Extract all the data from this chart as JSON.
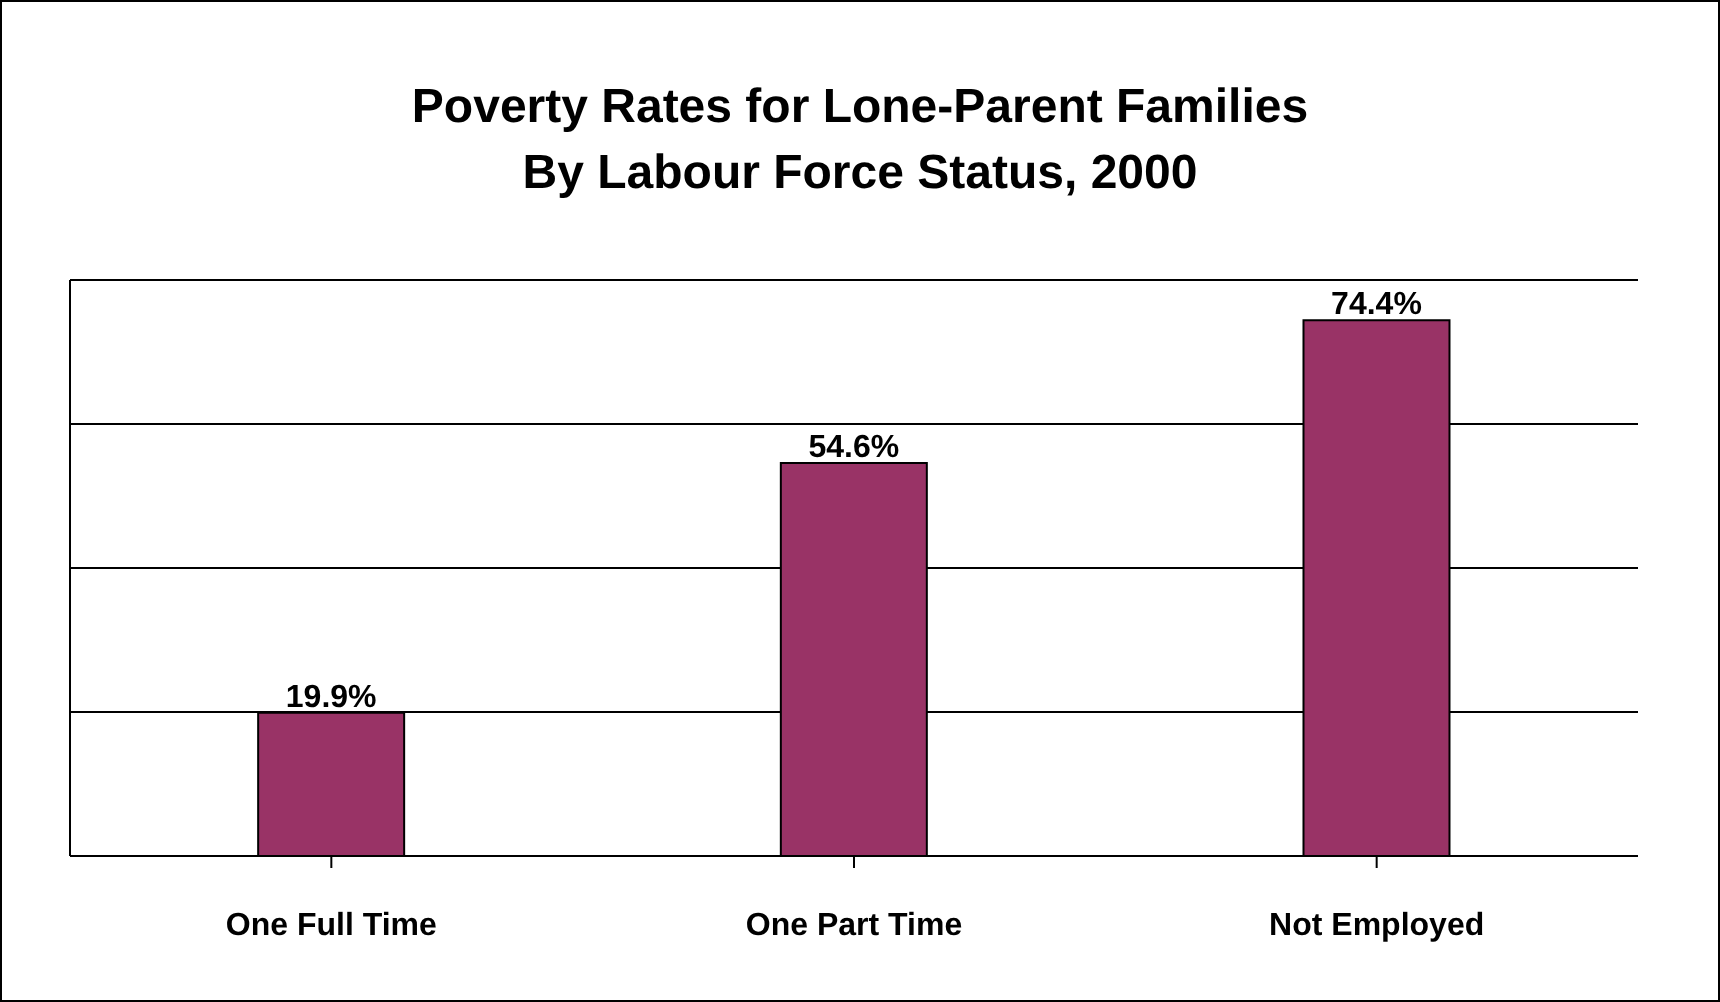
{
  "chart_data": {
    "type": "bar",
    "title": "Poverty Rates for Lone-Parent Families\nBy Labour Force Status, 2000",
    "categories": [
      "One Full Time",
      "One Part Time",
      "Not Employed"
    ],
    "values": [
      19.9,
      54.6,
      74.4
    ],
    "value_labels": [
      "19.9%",
      "54.6%",
      "74.4%"
    ],
    "color": "#993366",
    "grid": "y",
    "tick_labels": "x",
    "legend": false
  }
}
